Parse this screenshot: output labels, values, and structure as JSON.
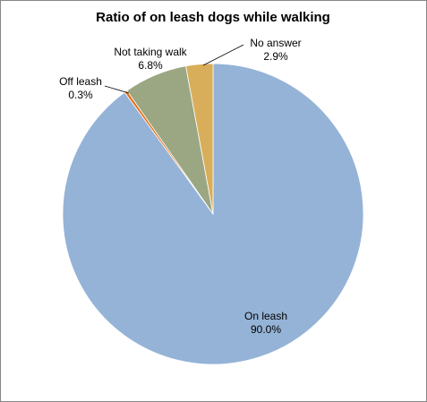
{
  "chart_data": {
    "type": "pie",
    "title": "Ratio of on leash dogs while walking",
    "slices": [
      {
        "label": "On leash",
        "value_label": "90.0%",
        "value": 90.0,
        "color": "#95B3D7"
      },
      {
        "label": "Off leash",
        "value_label": "0.3%",
        "value": 0.3,
        "color": "#E46C0A"
      },
      {
        "label": "Not taking walk",
        "value_label": "6.8%",
        "value": 6.8,
        "color": "#9BA783"
      },
      {
        "label": "No answer",
        "value_label": "2.9%",
        "value": 2.9,
        "color": "#D9AE5A"
      }
    ],
    "legend": "none",
    "data_labels": "outside with leader lines for small slices"
  }
}
